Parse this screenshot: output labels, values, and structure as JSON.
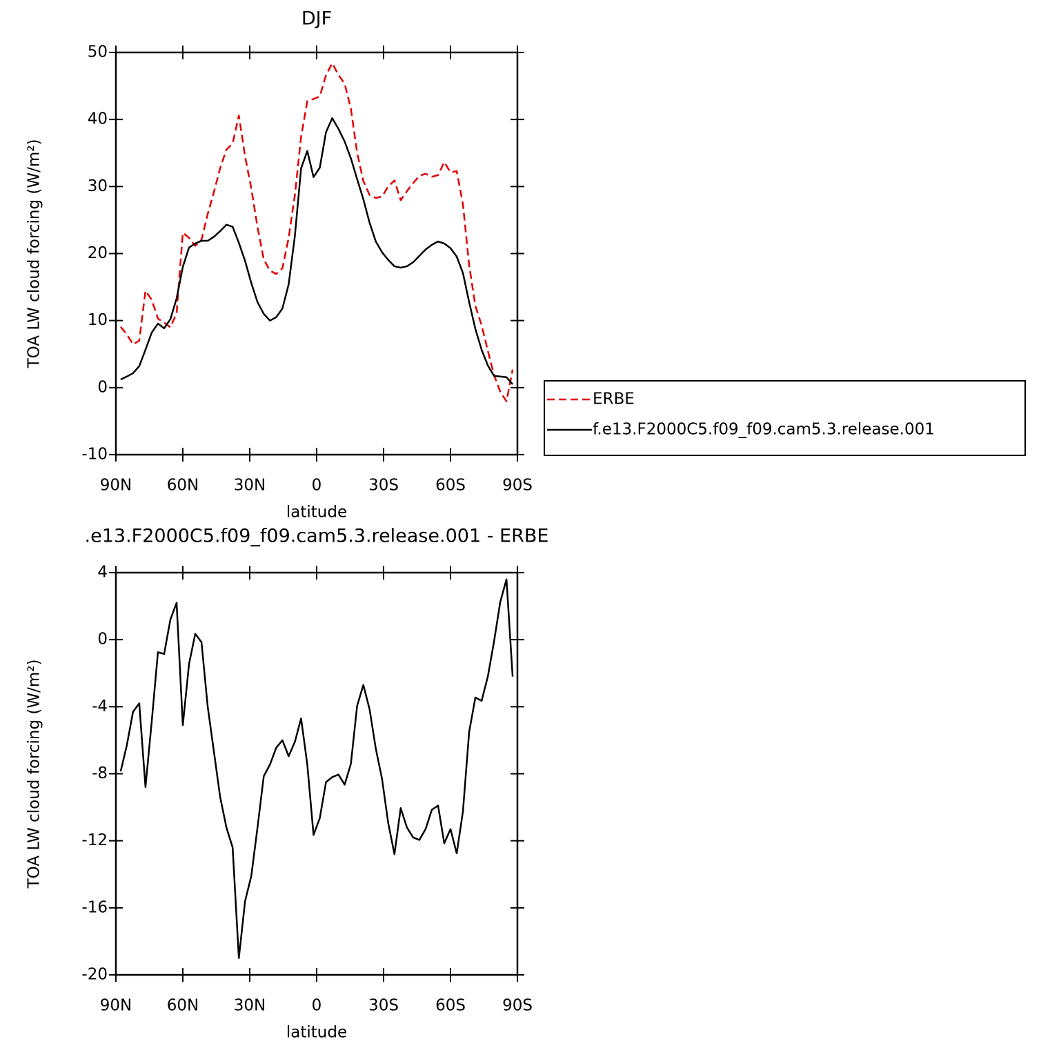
{
  "chart_data": [
    {
      "type": "line",
      "title": "DJF",
      "xlabel": "latitude",
      "ylabel": "TOA LW cloud forcing (W/m²)",
      "x": [
        87.86,
        85.1,
        82.31,
        79.53,
        76.74,
        73.95,
        71.16,
        68.37,
        65.58,
        62.79,
        60.0,
        57.21,
        54.42,
        51.63,
        48.84,
        46.04,
        43.25,
        40.46,
        37.67,
        34.88,
        32.09,
        29.3,
        26.51,
        23.72,
        20.93,
        18.14,
        15.35,
        12.56,
        9.77,
        6.98,
        4.19,
        1.4,
        -1.4,
        -4.19,
        -6.98,
        -9.77,
        -12.56,
        -15.35,
        -18.14,
        -20.93,
        -23.72,
        -26.51,
        -29.3,
        -32.09,
        -34.88,
        -37.67,
        -40.46,
        -43.25,
        -46.04,
        -48.84,
        -51.63,
        -54.42,
        -57.21,
        -60.0,
        -62.79,
        -65.58,
        -68.37,
        -71.16,
        -73.95,
        -76.74,
        -79.53,
        -82.31,
        -85.1,
        -87.86
      ],
      "series": [
        {
          "name": "ERBE",
          "color": "#e00000",
          "dashed": true,
          "values": [
            9.06,
            7.95,
            6.45,
            7.0,
            14.45,
            13.1,
            10.3,
            9.7,
            9.0,
            11.1,
            23.1,
            22.35,
            21.15,
            22.05,
            25.9,
            29.2,
            32.75,
            35.5,
            36.4,
            40.6,
            34.5,
            29.7,
            23.95,
            19.15,
            17.45,
            16.95,
            17.8,
            22.35,
            28.7,
            37.4,
            42.75,
            43.05,
            43.45,
            46.6,
            48.4,
            46.65,
            45.35,
            41.6,
            35.05,
            30.8,
            28.75,
            28.3,
            28.5,
            30.0,
            30.9,
            27.95,
            29.3,
            30.5,
            31.6,
            31.9,
            31.45,
            31.7,
            33.65,
            32.1,
            32.3,
            27.35,
            18.25,
            12.2,
            9.3,
            5.5,
            1.85,
            -0.6,
            -2.05,
            2.7
          ]
        },
        {
          "name": "f.e13.F2000C5.f09_f09.cam5.3.release.001",
          "color": "#000000",
          "dashed": false,
          "values": [
            1.2,
            1.65,
            2.15,
            3.2,
            5.65,
            8.2,
            9.55,
            8.85,
            10.2,
            13.3,
            18.0,
            20.9,
            21.5,
            21.9,
            21.9,
            22.5,
            23.35,
            24.3,
            24.0,
            21.6,
            18.9,
            15.6,
            12.75,
            11.0,
            10.0,
            10.5,
            11.8,
            15.4,
            22.6,
            32.7,
            35.3,
            31.4,
            32.8,
            38.1,
            40.2,
            38.6,
            36.7,
            34.2,
            31.1,
            28.1,
            24.6,
            21.8,
            20.2,
            19.05,
            18.1,
            17.9,
            18.1,
            18.7,
            19.65,
            20.6,
            21.3,
            21.8,
            21.5,
            20.8,
            19.55,
            17.1,
            12.75,
            8.75,
            5.65,
            3.3,
            1.75,
            1.65,
            1.55,
            0.5
          ]
        }
      ],
      "xlim": [
        90,
        -90
      ],
      "xticks": [
        {
          "value": 90,
          "label": "90N"
        },
        {
          "value": 60,
          "label": "60N"
        },
        {
          "value": 30,
          "label": "30N"
        },
        0,
        {
          "value": -30,
          "label": "30S"
        },
        {
          "value": -60,
          "label": "60S"
        },
        {
          "value": -90,
          "label": "90S"
        }
      ],
      "ylim": [
        -10,
        50
      ],
      "yticks": [
        -10,
        0,
        10,
        20,
        30,
        40,
        50
      ],
      "legend": "outside-right"
    },
    {
      "type": "line",
      "title": ".e13.F2000C5.f09_f09.cam5.3.release.001  - ERBE",
      "xlabel": "latitude",
      "ylabel": "TOA LW cloud forcing (W/m²)",
      "x": [
        87.86,
        85.1,
        82.31,
        79.53,
        76.74,
        73.95,
        71.16,
        68.37,
        65.58,
        62.79,
        60.0,
        57.21,
        54.42,
        51.63,
        48.84,
        46.04,
        43.25,
        40.46,
        37.67,
        34.88,
        32.09,
        29.3,
        26.51,
        23.72,
        20.93,
        18.14,
        15.35,
        12.56,
        9.77,
        6.98,
        4.19,
        1.4,
        -1.4,
        -4.19,
        -6.98,
        -9.77,
        -12.56,
        -15.35,
        -18.14,
        -20.93,
        -23.72,
        -26.51,
        -29.3,
        -32.09,
        -34.88,
        -37.67,
        -40.46,
        -43.25,
        -46.04,
        -48.84,
        -51.63,
        -54.42,
        -57.21,
        -60.0,
        -62.79,
        -65.58,
        -68.37,
        -71.16,
        -73.95,
        -76.74,
        -79.53,
        -82.31,
        -85.1,
        -87.86
      ],
      "series": [
        {
          "color": "#000000",
          "dashed": false,
          "values": [
            -7.86,
            -6.3,
            -4.3,
            -3.8,
            -8.8,
            -4.9,
            -0.75,
            -0.85,
            1.2,
            2.2,
            -5.1,
            -1.45,
            0.35,
            -0.15,
            -4.0,
            -6.7,
            -9.4,
            -11.2,
            -12.4,
            -19.0,
            -15.6,
            -14.1,
            -11.2,
            -8.15,
            -7.45,
            -6.45,
            -6.0,
            -6.95,
            -6.1,
            -4.7,
            -7.45,
            -11.65,
            -10.65,
            -8.5,
            -8.2,
            -8.05,
            -8.65,
            -7.4,
            -3.95,
            -2.7,
            -4.15,
            -6.5,
            -8.3,
            -10.95,
            -12.8,
            -10.05,
            -11.2,
            -11.8,
            -11.95,
            -11.3,
            -10.15,
            -9.9,
            -12.15,
            -11.3,
            -12.75,
            -10.25,
            -5.5,
            -3.45,
            -3.65,
            -2.2,
            -0.1,
            2.25,
            3.6,
            -2.2
          ]
        }
      ],
      "xlim": [
        90,
        -90
      ],
      "xticks": [
        {
          "value": 90,
          "label": "90N"
        },
        {
          "value": 60,
          "label": "60N"
        },
        {
          "value": 30,
          "label": "30N"
        },
        0,
        {
          "value": -30,
          "label": "30S"
        },
        {
          "value": -60,
          "label": "60S"
        },
        {
          "value": -90,
          "label": "90S"
        }
      ],
      "ylim": [
        -20,
        4
      ],
      "yticks": [
        -20,
        -16,
        -12,
        -8,
        -4,
        0,
        4
      ]
    }
  ]
}
